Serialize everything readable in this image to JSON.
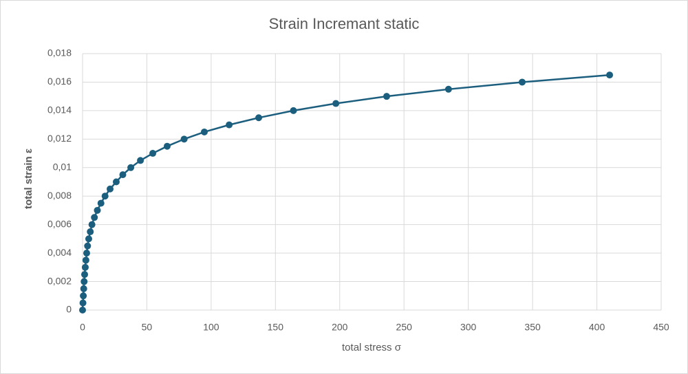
{
  "chart_data": {
    "type": "line",
    "title": "Strain Incremant static",
    "x_label": "total stress σ",
    "y_label": "total strain ε",
    "x": [
      0,
      0.3,
      0.6,
      0.9,
      1.2,
      1.6,
      2.1,
      2.6,
      3.2,
      3.9,
      4.8,
      6.0,
      7.3,
      9.2,
      11.5,
      14.3,
      17.5,
      21.4,
      26.2,
      31.3,
      37.5,
      45,
      54.6,
      65.8,
      79,
      94.7,
      114,
      137,
      164,
      197,
      236.5,
      284.6,
      341.9,
      409.9
    ],
    "values": [
      0,
      0.0005,
      0.001,
      0.0015,
      0.002,
      0.0025,
      0.003,
      0.0035,
      0.004,
      0.0045,
      0.005,
      0.0055,
      0.006,
      0.0065,
      0.007,
      0.0075,
      0.008,
      0.0085,
      0.009,
      0.0095,
      0.01,
      0.0105,
      0.011,
      0.0115,
      0.012,
      0.0125,
      0.013,
      0.0135,
      0.014,
      0.0145,
      0.015,
      0.0155,
      0.016,
      0.0165
    ],
    "color": "#1b5e7e",
    "markers": true,
    "grid": true,
    "xlim": [
      0,
      450
    ],
    "xticks": [
      0,
      50,
      100,
      150,
      200,
      250,
      300,
      350,
      400,
      450
    ],
    "ylim": [
      0,
      0.018
    ],
    "yticks": [
      0,
      {
        "value": 0.002,
        "label": "0,002"
      },
      {
        "value": 0.004,
        "label": "0,004"
      },
      {
        "value": 0.006,
        "label": "0,006"
      },
      {
        "value": 0.008,
        "label": "0,008"
      },
      {
        "value": 0.01,
        "label": "0,01"
      },
      {
        "value": 0.012,
        "label": "0,012"
      },
      {
        "value": 0.014,
        "label": "0,014"
      },
      {
        "value": 0.016,
        "label": "0,016"
      },
      {
        "value": 0.018,
        "label": "0,018"
      }
    ]
  }
}
